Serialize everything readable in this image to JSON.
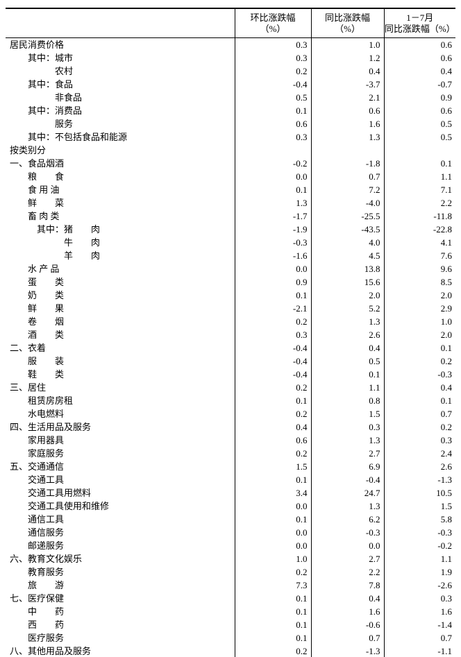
{
  "page": {
    "background_color": "#ffffff",
    "text_color": "#000000",
    "border_color": "#000000"
  },
  "table": {
    "header": {
      "item_col": "",
      "mom_line1": "环比涨跌幅",
      "mom_line2": "（%）",
      "yoy_line1": "同比涨跌幅",
      "yoy_line2": "（%）",
      "ytd_line1": "1－7月",
      "ytd_line2": "同比涨跌幅（%）"
    },
    "rows": [
      {
        "label": "居民消费价格",
        "mom": "0.3",
        "yoy": "1.0",
        "ytd": "0.6"
      },
      {
        "label": "　　其中：城市",
        "mom": "0.3",
        "yoy": "1.2",
        "ytd": "0.6"
      },
      {
        "label": "　　　　　农村",
        "mom": "0.2",
        "yoy": "0.4",
        "ytd": "0.4"
      },
      {
        "label": "　　其中：食品",
        "mom": "-0.4",
        "yoy": "-3.7",
        "ytd": "-0.7"
      },
      {
        "label": "　　　　　非食品",
        "mom": "0.5",
        "yoy": "2.1",
        "ytd": "0.9"
      },
      {
        "label": "　　其中：消费品",
        "mom": "0.1",
        "yoy": "0.6",
        "ytd": "0.6"
      },
      {
        "label": "　　　　　服务",
        "mom": "0.6",
        "yoy": "1.6",
        "ytd": "0.5"
      },
      {
        "label": "　　其中：不包括食品和能源",
        "mom": "0.3",
        "yoy": "1.3",
        "ytd": "0.5"
      },
      {
        "label": "按类别分",
        "mom": "",
        "yoy": "",
        "ytd": ""
      },
      {
        "label": "一、食品烟酒",
        "mom": "-0.2",
        "yoy": "-1.8",
        "ytd": "0.1"
      },
      {
        "label": "　　粮　　食",
        "mom": "0.0",
        "yoy": "0.7",
        "ytd": "1.1"
      },
      {
        "label": "　　食 用 油",
        "mom": "0.1",
        "yoy": "7.2",
        "ytd": "7.1"
      },
      {
        "label": "　　鲜　　菜",
        "mom": "1.3",
        "yoy": "-4.0",
        "ytd": "2.2"
      },
      {
        "label": "　　畜 肉 类",
        "mom": "-1.7",
        "yoy": "-25.5",
        "ytd": "-11.8"
      },
      {
        "label": "　　　其中：猪　　肉",
        "mom": "-1.9",
        "yoy": "-43.5",
        "ytd": "-22.8"
      },
      {
        "label": "　　　　　　牛　　肉",
        "mom": "-0.3",
        "yoy": "4.0",
        "ytd": "4.1"
      },
      {
        "label": "　　　　　　羊　　肉",
        "mom": "-1.6",
        "yoy": "4.5",
        "ytd": "7.6"
      },
      {
        "label": "　　水 产 品",
        "mom": "0.0",
        "yoy": "13.8",
        "ytd": "9.6"
      },
      {
        "label": "　　蛋　　类",
        "mom": "0.9",
        "yoy": "15.6",
        "ytd": "8.5"
      },
      {
        "label": "　　奶　　类",
        "mom": "0.1",
        "yoy": "2.0",
        "ytd": "2.0"
      },
      {
        "label": "　　鲜　　果",
        "mom": "-2.1",
        "yoy": "5.2",
        "ytd": "2.9"
      },
      {
        "label": "　　卷　　烟",
        "mom": "0.2",
        "yoy": "1.3",
        "ytd": "1.0"
      },
      {
        "label": "　　酒　　类",
        "mom": "0.3",
        "yoy": "2.6",
        "ytd": "2.0"
      },
      {
        "label": "二、衣着",
        "mom": "-0.4",
        "yoy": "0.4",
        "ytd": "0.1"
      },
      {
        "label": "　　服　　装",
        "mom": "-0.4",
        "yoy": "0.5",
        "ytd": "0.2"
      },
      {
        "label": "　　鞋　　类",
        "mom": "-0.4",
        "yoy": "0.1",
        "ytd": "-0.3"
      },
      {
        "label": "三、居住",
        "mom": "0.2",
        "yoy": "1.1",
        "ytd": "0.4"
      },
      {
        "label": "　　租赁房房租",
        "mom": "0.1",
        "yoy": "0.8",
        "ytd": "0.1"
      },
      {
        "label": "　　水电燃料",
        "mom": "0.2",
        "yoy": "1.5",
        "ytd": "0.7"
      },
      {
        "label": "四、生活用品及服务",
        "mom": "0.4",
        "yoy": "0.3",
        "ytd": "0.2"
      },
      {
        "label": "　　家用器具",
        "mom": "0.6",
        "yoy": "1.3",
        "ytd": "0.3"
      },
      {
        "label": "　　家庭服务",
        "mom": "0.2",
        "yoy": "2.7",
        "ytd": "2.4"
      },
      {
        "label": "五、交通通信",
        "mom": "1.5",
        "yoy": "6.9",
        "ytd": "2.6"
      },
      {
        "label": "　　交通工具",
        "mom": "0.1",
        "yoy": "-0.4",
        "ytd": "-1.3"
      },
      {
        "label": "　　交通工具用燃料",
        "mom": "3.4",
        "yoy": "24.7",
        "ytd": "10.5"
      },
      {
        "label": "　　交通工具使用和维修",
        "mom": "0.0",
        "yoy": "1.3",
        "ytd": "1.5"
      },
      {
        "label": "　　通信工具",
        "mom": "0.1",
        "yoy": "6.2",
        "ytd": "5.8"
      },
      {
        "label": "　　通信服务",
        "mom": "0.0",
        "yoy": "-0.3",
        "ytd": "-0.3"
      },
      {
        "label": "　　邮递服务",
        "mom": "0.0",
        "yoy": "0.0",
        "ytd": "-0.2"
      },
      {
        "label": "六、教育文化娱乐",
        "mom": "1.0",
        "yoy": "2.7",
        "ytd": "1.1"
      },
      {
        "label": "　　教育服务",
        "mom": "0.2",
        "yoy": "2.2",
        "ytd": "1.9"
      },
      {
        "label": "　　旅　　游",
        "mom": "7.3",
        "yoy": "7.8",
        "ytd": "-2.6"
      },
      {
        "label": "七、医疗保健",
        "mom": "0.1",
        "yoy": "0.4",
        "ytd": "0.3"
      },
      {
        "label": "　　中　　药",
        "mom": "0.1",
        "yoy": "1.6",
        "ytd": "1.6"
      },
      {
        "label": "　　西　　药",
        "mom": "0.1",
        "yoy": "-0.6",
        "ytd": "-1.4"
      },
      {
        "label": "　　医疗服务",
        "mom": "0.1",
        "yoy": "0.7",
        "ytd": "0.7"
      },
      {
        "label": "八、其他用品及服务",
        "mom": "0.2",
        "yoy": "-1.3",
        "ytd": "-1.1"
      }
    ]
  }
}
